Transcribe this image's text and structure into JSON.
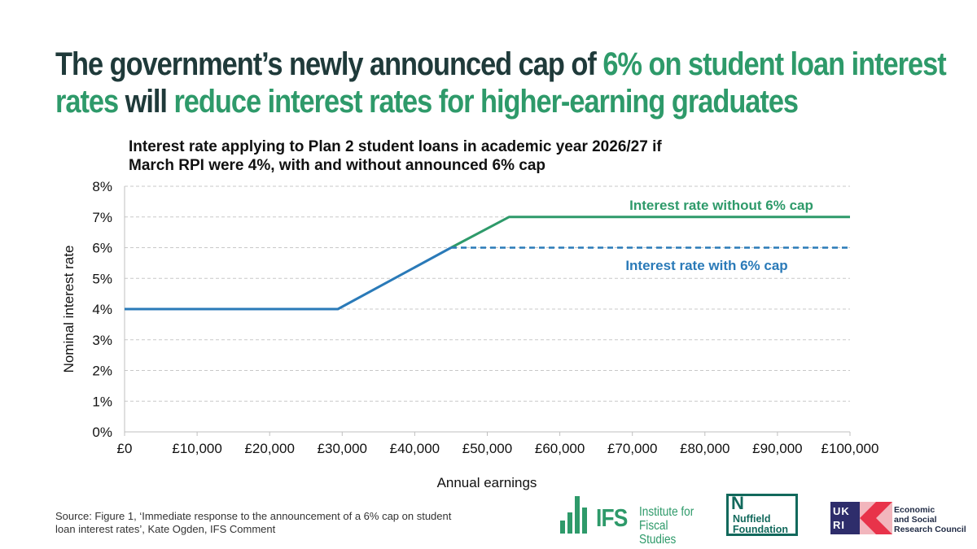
{
  "headline": {
    "line1_plain": "The government’s newly announced cap of ",
    "line1_highlight": "6% on student loan interest",
    "line2_highlight_a": "rates",
    "line2_plain": " will ",
    "line2_highlight_b": "reduce interest rates for higher-earning graduates"
  },
  "chart_data": {
    "type": "line",
    "title_lines": [
      "Interest rate applying to Plan 2 student loans in academic year 2026/27 if",
      "March RPI were 4%, with and without announced 6% cap"
    ],
    "xlabel": "Annual earnings",
    "ylabel": "Nominal interest rate",
    "xlim": [
      0,
      100000
    ],
    "ylim": [
      0,
      8
    ],
    "x_ticks": [
      0,
      10000,
      20000,
      30000,
      40000,
      50000,
      60000,
      70000,
      80000,
      90000,
      100000
    ],
    "x_tick_labels": [
      "£0",
      "£10,000",
      "£20,000",
      "£30,000",
      "£40,000",
      "£50,000",
      "£60,000",
      "£70,000",
      "£80,000",
      "£90,000",
      "£100,000"
    ],
    "y_ticks": [
      0,
      1,
      2,
      3,
      4,
      5,
      6,
      7,
      8
    ],
    "y_tick_labels": [
      "0%",
      "1%",
      "2%",
      "3%",
      "4%",
      "5%",
      "6%",
      "7%",
      "8%"
    ],
    "grid": "horizontal dashed",
    "series": [
      {
        "name": "Interest rate without 6% cap",
        "color": "#2e9a6a",
        "style": "solid",
        "x": [
          45000,
          53000,
          100000
        ],
        "y": [
          6,
          7,
          7
        ]
      },
      {
        "name": "Interest rate with 6% cap",
        "color": "#2a7ab8",
        "style": "solid",
        "x": [
          0,
          29400,
          45000
        ],
        "y": [
          4,
          4,
          6
        ]
      },
      {
        "name": "Interest rate with 6% cap",
        "color": "#2a7ab8",
        "style": "dashed",
        "x": [
          45000,
          100000
        ],
        "y": [
          6,
          6
        ]
      }
    ],
    "annotations": [
      {
        "text": "Interest rate without 6% cap",
        "color": "#2e9a6a"
      },
      {
        "text": "Interest rate with 6% cap",
        "color": "#2a7ab8"
      }
    ]
  },
  "source": {
    "line1": "Source: Figure 1, ‘Immediate response to the announcement of a 6% cap on student",
    "line2": "loan interest rates’, Kate Ogden, IFS Comment"
  },
  "logos": {
    "ifs": {
      "mark": "IFS",
      "name_line1": "Institute for",
      "name_line2": "Fiscal Studies"
    },
    "nuffield": {
      "mark": "N",
      "name_line1": "Nuffield",
      "name_line2": "Foundation"
    },
    "ukri": {
      "mark_line1": "UK",
      "mark_line2": "RI"
    },
    "esrc": {
      "name_line1": "Economic",
      "name_line2": "and Social",
      "name_line3": "Research Council"
    }
  },
  "colors": {
    "headline_dark": "#1f3a3a",
    "headline_green": "#2e9a6a",
    "series_green": "#2e9a6a",
    "series_blue": "#2a7ab8"
  }
}
